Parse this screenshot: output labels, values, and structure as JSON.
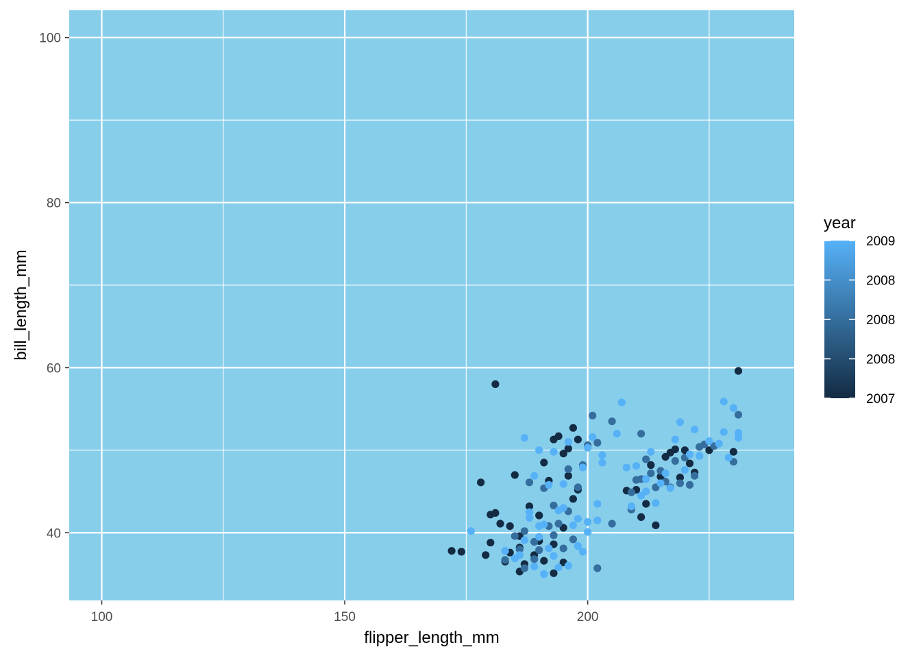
{
  "chart_data": {
    "type": "scatter",
    "title": "",
    "xlabel": "flipper_length_mm",
    "ylabel": "bill_length_mm",
    "xlim": [
      93.3,
      242.5
    ],
    "ylim": [
      31.8,
      103.3
    ],
    "x_ticks": [
      100,
      150,
      200
    ],
    "y_ticks": [
      40,
      60,
      80,
      100
    ],
    "x_minor": [
      125,
      175,
      225
    ],
    "y_minor": [
      50,
      70,
      90
    ],
    "panel_background": "#87CEEB",
    "grid": true,
    "grid_color": "#ffffff",
    "color_low": "#132B43",
    "color_high": "#56B1F7",
    "legend": {
      "title": "year",
      "position": "right",
      "labels": [
        "2009",
        "2008",
        "2008",
        "2008",
        "2007"
      ],
      "min": 2007,
      "max": 2009
    },
    "points": [
      [
        181,
        58.0,
        2007
      ],
      [
        231,
        59.6,
        2007
      ],
      [
        178,
        46.1,
        2007
      ],
      [
        172,
        37.8,
        2007
      ],
      [
        174,
        37.7,
        2007
      ],
      [
        180,
        42.2,
        2007
      ],
      [
        181,
        42.4,
        2007
      ],
      [
        182,
        41.1,
        2007
      ],
      [
        184,
        40.8,
        2007
      ],
      [
        186,
        39.6,
        2007
      ],
      [
        185,
        47.0,
        2007
      ],
      [
        188,
        43.2,
        2007
      ],
      [
        190,
        42.1,
        2007
      ],
      [
        191,
        48.5,
        2007
      ],
      [
        192,
        46.3,
        2007
      ],
      [
        193,
        51.3,
        2007
      ],
      [
        194,
        51.7,
        2007
      ],
      [
        196,
        50.2,
        2007
      ],
      [
        198,
        51.3,
        2007
      ],
      [
        197,
        52.7,
        2007
      ],
      [
        195,
        49.6,
        2007
      ],
      [
        196,
        46.9,
        2007
      ],
      [
        198,
        45.2,
        2007
      ],
      [
        195,
        40.6,
        2007
      ],
      [
        193,
        38.6,
        2007
      ],
      [
        189,
        37.3,
        2007
      ],
      [
        187,
        36.2,
        2007
      ],
      [
        186,
        35.3,
        2007
      ],
      [
        183,
        36.5,
        2007
      ],
      [
        179,
        37.3,
        2007
      ],
      [
        184,
        37.6,
        2007
      ],
      [
        186,
        38.2,
        2007
      ],
      [
        190,
        39.0,
        2007
      ],
      [
        191,
        36.6,
        2007
      ],
      [
        193,
        35.1,
        2007
      ],
      [
        195,
        36.4,
        2007
      ],
      [
        197,
        44.1,
        2007
      ],
      [
        180,
        38.8,
        2007
      ],
      [
        210,
        45.2,
        2007
      ],
      [
        212,
        43.5,
        2007
      ],
      [
        214,
        40.9,
        2007
      ],
      [
        215,
        46.8,
        2007
      ],
      [
        216,
        49.2,
        2007
      ],
      [
        218,
        50.1,
        2007
      ],
      [
        220,
        50.0,
        2007
      ],
      [
        221,
        48.4,
        2007
      ],
      [
        222,
        47.3,
        2007
      ],
      [
        225,
        50.0,
        2007
      ],
      [
        230,
        49.8,
        2007
      ],
      [
        213,
        48.2,
        2007
      ],
      [
        208,
        45.1,
        2007
      ],
      [
        211,
        41.9,
        2007
      ],
      [
        217,
        49.7,
        2007
      ],
      [
        219,
        46.7,
        2007
      ],
      [
        201,
        54.2,
        2008
      ],
      [
        205,
        53.5,
        2008
      ],
      [
        202,
        50.9,
        2008
      ],
      [
        200,
        50.6,
        2008
      ],
      [
        196,
        47.7,
        2008
      ],
      [
        193,
        43.3,
        2008
      ],
      [
        191,
        45.4,
        2008
      ],
      [
        188,
        46.1,
        2008
      ],
      [
        187,
        40.2,
        2008
      ],
      [
        189,
        38.9,
        2008
      ],
      [
        185,
        39.6,
        2008
      ],
      [
        183,
        36.7,
        2008
      ],
      [
        187,
        35.7,
        2008
      ],
      [
        190,
        37.9,
        2008
      ],
      [
        193,
        39.7,
        2008
      ],
      [
        194,
        41.1,
        2008
      ],
      [
        196,
        42.6,
        2008
      ],
      [
        198,
        45.5,
        2008
      ],
      [
        199,
        48.2,
        2008
      ],
      [
        202,
        35.7,
        2008
      ],
      [
        205,
        41.1,
        2008
      ],
      [
        209,
        44.9,
        2008
      ],
      [
        210,
        46.4,
        2008
      ],
      [
        211,
        52.0,
        2008
      ],
      [
        212,
        48.9,
        2008
      ],
      [
        214,
        45.5,
        2008
      ],
      [
        215,
        47.5,
        2008
      ],
      [
        216,
        46.2,
        2008
      ],
      [
        217,
        45.5,
        2008
      ],
      [
        218,
        48.7,
        2008
      ],
      [
        219,
        46.0,
        2008
      ],
      [
        220,
        49.1,
        2008
      ],
      [
        221,
        45.8,
        2008
      ],
      [
        222,
        46.9,
        2008
      ],
      [
        223,
        50.4,
        2008
      ],
      [
        224,
        50.7,
        2008
      ],
      [
        226,
        50.5,
        2008
      ],
      [
        230,
        48.6,
        2008
      ],
      [
        231,
        54.3,
        2008
      ],
      [
        209,
        42.8,
        2008
      ],
      [
        211,
        46.5,
        2008
      ],
      [
        213,
        47.2,
        2008
      ],
      [
        195,
        38.1,
        2008
      ],
      [
        189,
        36.8,
        2008
      ],
      [
        192,
        40.8,
        2008
      ],
      [
        197,
        39.2,
        2008
      ],
      [
        186,
        38.0,
        2008
      ],
      [
        187,
        51.5,
        2009
      ],
      [
        190,
        50.0,
        2009
      ],
      [
        193,
        49.8,
        2009
      ],
      [
        196,
        51.0,
        2009
      ],
      [
        199,
        47.9,
        2009
      ],
      [
        200,
        50.3,
        2009
      ],
      [
        201,
        51.6,
        2009
      ],
      [
        203,
        49.4,
        2009
      ],
      [
        206,
        52.0,
        2009
      ],
      [
        207,
        55.8,
        2009
      ],
      [
        203,
        48.5,
        2009
      ],
      [
        202,
        43.5,
        2009
      ],
      [
        200,
        41.3,
        2009
      ],
      [
        198,
        41.7,
        2009
      ],
      [
        197,
        40.9,
        2009
      ],
      [
        194,
        42.7,
        2009
      ],
      [
        191,
        41.0,
        2009
      ],
      [
        189,
        46.9,
        2009
      ],
      [
        192,
        45.8,
        2009
      ],
      [
        195,
        45.9,
        2009
      ],
      [
        176,
        40.2,
        2009
      ],
      [
        183,
        37.8,
        2009
      ],
      [
        185,
        36.9,
        2009
      ],
      [
        187,
        39.1,
        2009
      ],
      [
        188,
        41.8,
        2009
      ],
      [
        190,
        39.5,
        2009
      ],
      [
        192,
        38.1,
        2009
      ],
      [
        193,
        37.2,
        2009
      ],
      [
        194,
        35.8,
        2009
      ],
      [
        196,
        36.0,
        2009
      ],
      [
        198,
        38.4,
        2009
      ],
      [
        200,
        40.1,
        2009
      ],
      [
        202,
        41.5,
        2009
      ],
      [
        209,
        43.2,
        2009
      ],
      [
        210,
        48.1,
        2009
      ],
      [
        211,
        44.5,
        2009
      ],
      [
        212,
        46.5,
        2009
      ],
      [
        213,
        49.8,
        2009
      ],
      [
        214,
        43.6,
        2009
      ],
      [
        215,
        46.0,
        2009
      ],
      [
        216,
        47.2,
        2009
      ],
      [
        217,
        45.4,
        2009
      ],
      [
        218,
        51.3,
        2009
      ],
      [
        219,
        53.4,
        2009
      ],
      [
        220,
        47.6,
        2009
      ],
      [
        221,
        49.5,
        2009
      ],
      [
        222,
        52.5,
        2009
      ],
      [
        223,
        49.3,
        2009
      ],
      [
        225,
        51.1,
        2009
      ],
      [
        228,
        52.2,
        2009
      ],
      [
        229,
        49.1,
        2009
      ],
      [
        230,
        55.1,
        2009
      ],
      [
        231,
        52.1,
        2009
      ],
      [
        228,
        55.9,
        2009
      ],
      [
        227,
        50.8,
        2009
      ],
      [
        231,
        51.5,
        2009
      ],
      [
        212,
        45.0,
        2009
      ],
      [
        208,
        47.9,
        2009
      ],
      [
        189,
        35.9,
        2009
      ],
      [
        191,
        35.0,
        2009
      ],
      [
        188,
        42.5,
        2009
      ],
      [
        199,
        37.7,
        2009
      ],
      [
        186,
        37.3,
        2009
      ],
      [
        195,
        43.0,
        2009
      ],
      [
        190,
        40.8,
        2009
      ]
    ]
  }
}
